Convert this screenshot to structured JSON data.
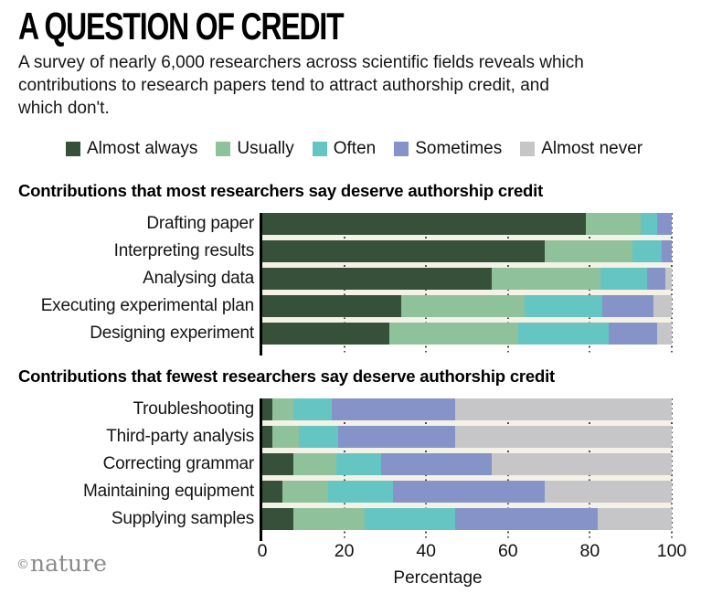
{
  "header": {
    "title": "A QUESTION OF CREDIT",
    "subtitle": "A survey of nearly 6,000 researchers across scientific fields reveals which contributions to research papers tend to attract authorship credit, and which don't.",
    "subtitle_lines": [
      "A survey of nearly 6,000 researchers across scientific fields reveals which",
      "contributions to research papers tend to attract authorship credit, and",
      "which don't."
    ]
  },
  "legend": [
    {
      "label": "Almost always",
      "color": "#36503a"
    },
    {
      "label": "Usually",
      "color": "#8fc19b"
    },
    {
      "label": "Often",
      "color": "#64c5c3"
    },
    {
      "label": "Sometimes",
      "color": "#8593c8"
    },
    {
      "label": "Almost never",
      "color": "#c6c6c8"
    }
  ],
  "colors": {
    "plot_background": "#f4f1e7",
    "axis": "#000000",
    "page_background": "#ffffff"
  },
  "chart_data": [
    {
      "type": "bar",
      "stacked": true,
      "orientation": "horizontal",
      "title": "Contributions that most researchers say deserve authorship credit",
      "categories": [
        "Drafting paper",
        "Interpreting results",
        "Analysing data",
        "Executing experimental plan",
        "Designing experiment"
      ],
      "series": [
        {
          "name": "Almost always",
          "values": [
            79,
            69,
            56,
            34,
            31
          ]
        },
        {
          "name": "Usually",
          "values": [
            13.5,
            21.5,
            26.5,
            30,
            31.5
          ]
        },
        {
          "name": "Often",
          "values": [
            4,
            7,
            11.5,
            19,
            22
          ]
        },
        {
          "name": "Sometimes",
          "values": [
            3.5,
            2.5,
            4.5,
            12.5,
            12
          ]
        },
        {
          "name": "Almost never",
          "values": [
            0,
            0,
            1.5,
            4.5,
            3.5
          ]
        }
      ],
      "xlim": [
        0,
        100
      ],
      "grid": "dotted-vertical",
      "legend_position": "top"
    },
    {
      "type": "bar",
      "stacked": true,
      "orientation": "horizontal",
      "title": "Contributions that fewest researchers say deserve authorship credit",
      "categories": [
        "Troubleshooting",
        "Third-party analysis",
        "Correcting grammar",
        "Maintaining equipment",
        "Supplying samples"
      ],
      "series": [
        {
          "name": "Almost always",
          "values": [
            2.5,
            2.5,
            7.5,
            5,
            7.5
          ]
        },
        {
          "name": "Usually",
          "values": [
            5,
            6.5,
            10.5,
            11,
            17.5
          ]
        },
        {
          "name": "Often",
          "values": [
            9.5,
            9.5,
            11,
            16,
            22
          ]
        },
        {
          "name": "Sometimes",
          "values": [
            30,
            28.5,
            27,
            37,
            35
          ]
        },
        {
          "name": "Almost never",
          "values": [
            53,
            53,
            44,
            31,
            18
          ]
        }
      ],
      "xlim": [
        0,
        100
      ],
      "grid": "dotted-vertical",
      "legend_position": "top"
    }
  ],
  "axis": {
    "ticks": [
      "0",
      "20",
      "40",
      "60",
      "80",
      "100"
    ],
    "xlabel": "Percentage"
  },
  "footer": {
    "copyright": "©",
    "brand": "nature"
  }
}
